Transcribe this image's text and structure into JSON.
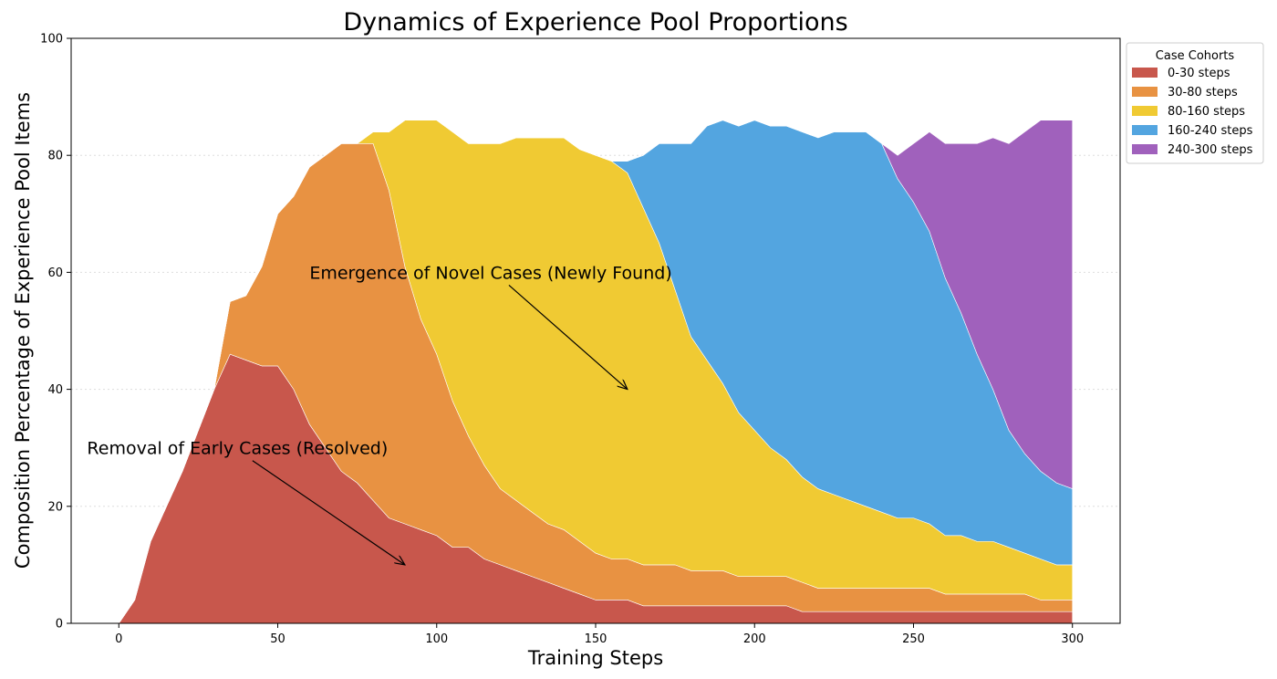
{
  "chart_data": {
    "type": "area",
    "title": "Dynamics of Experience Pool Proportions",
    "xlabel": "Training Steps",
    "ylabel": "Composition Percentage of Experience Pool Items",
    "xlim": [
      -15,
      315
    ],
    "ylim": [
      0,
      100
    ],
    "xticks": [
      0,
      50,
      100,
      150,
      200,
      250,
      300
    ],
    "yticks": [
      0,
      20,
      40,
      60,
      80,
      100
    ],
    "grid": "horizontal dotted",
    "legend": {
      "title": "Case Cohorts",
      "placement": "outside upper-right",
      "entries": [
        "0-30 steps",
        "30-80 steps",
        "80-160 steps",
        "160-240 steps",
        "240-300 steps"
      ]
    },
    "x": [
      0,
      5,
      10,
      15,
      20,
      25,
      30,
      35,
      40,
      45,
      50,
      55,
      60,
      65,
      70,
      75,
      80,
      85,
      90,
      95,
      100,
      105,
      110,
      115,
      120,
      125,
      130,
      135,
      140,
      145,
      150,
      155,
      160,
      165,
      170,
      175,
      180,
      185,
      190,
      195,
      200,
      205,
      210,
      215,
      220,
      225,
      230,
      235,
      240,
      245,
      250,
      255,
      260,
      265,
      270,
      275,
      280,
      285,
      290,
      295,
      300
    ],
    "series": [
      {
        "name": "0-30 steps",
        "color": "#c8574c",
        "values": [
          0,
          4,
          14,
          20,
          26,
          33,
          40,
          46,
          45,
          44,
          44,
          40,
          34,
          30,
          26,
          24,
          21,
          18,
          17,
          16,
          15,
          13,
          13,
          11,
          10,
          9,
          8,
          7,
          6,
          5,
          4,
          4,
          4,
          3,
          3,
          3,
          3,
          3,
          3,
          3,
          3,
          3,
          3,
          2,
          2,
          2,
          2,
          2,
          2,
          2,
          2,
          2,
          2,
          2,
          2,
          2,
          2,
          2,
          2,
          2,
          2
        ]
      },
      {
        "name": "30-80 steps",
        "color": "#e89242",
        "values": [
          0,
          0,
          0,
          0,
          0,
          0,
          0,
          9,
          11,
          17,
          26,
          33,
          44,
          50,
          56,
          58,
          61,
          56,
          44,
          36,
          31,
          25,
          19,
          16,
          13,
          12,
          11,
          10,
          10,
          9,
          8,
          7,
          7,
          7,
          7,
          7,
          6,
          6,
          6,
          5,
          5,
          5,
          5,
          5,
          4,
          4,
          4,
          4,
          4,
          4,
          4,
          4,
          3,
          3,
          3,
          3,
          3,
          3,
          2,
          2,
          2
        ]
      },
      {
        "name": "80-160 steps",
        "color": "#f0ca33",
        "values": [
          0,
          0,
          0,
          0,
          0,
          0,
          0,
          0,
          0,
          0,
          0,
          0,
          0,
          0,
          0,
          0,
          2,
          10,
          25,
          34,
          40,
          46,
          50,
          55,
          59,
          62,
          64,
          66,
          67,
          67,
          68,
          68,
          66,
          61,
          55,
          47,
          40,
          36,
          32,
          28,
          25,
          22,
          20,
          18,
          17,
          16,
          15,
          14,
          13,
          12,
          12,
          11,
          10,
          10,
          9,
          9,
          8,
          7,
          7,
          6,
          6
        ]
      },
      {
        "name": "160-240 steps",
        "color": "#53a5e0",
        "values": [
          0,
          0,
          0,
          0,
          0,
          0,
          0,
          0,
          0,
          0,
          0,
          0,
          0,
          0,
          0,
          0,
          0,
          0,
          0,
          0,
          0,
          0,
          0,
          0,
          0,
          0,
          0,
          0,
          0,
          0,
          0,
          0,
          2,
          9,
          17,
          25,
          33,
          40,
          45,
          49,
          53,
          55,
          57,
          59,
          60,
          62,
          63,
          64,
          63,
          58,
          54,
          50,
          44,
          38,
          32,
          26,
          20,
          17,
          15,
          14,
          13
        ]
      },
      {
        "name": "240-300 steps",
        "color": "#a061bc",
        "values": [
          0,
          0,
          0,
          0,
          0,
          0,
          0,
          0,
          0,
          0,
          0,
          0,
          0,
          0,
          0,
          0,
          0,
          0,
          0,
          0,
          0,
          0,
          0,
          0,
          0,
          0,
          0,
          0,
          0,
          0,
          0,
          0,
          0,
          0,
          0,
          0,
          0,
          0,
          0,
          0,
          0,
          0,
          0,
          0,
          0,
          0,
          0,
          0,
          0,
          4,
          10,
          17,
          23,
          29,
          36,
          43,
          49,
          55,
          60,
          62,
          63
        ]
      }
    ],
    "annotations": [
      {
        "text": "Emergence of Novel Cases (Newly Found)",
        "text_at": [
          60,
          60
        ],
        "arrow_to": [
          160,
          40
        ]
      },
      {
        "text": "Removal of Early Cases (Resolved)",
        "text_at": [
          -10,
          30
        ],
        "arrow_to": [
          90,
          10
        ]
      }
    ]
  }
}
